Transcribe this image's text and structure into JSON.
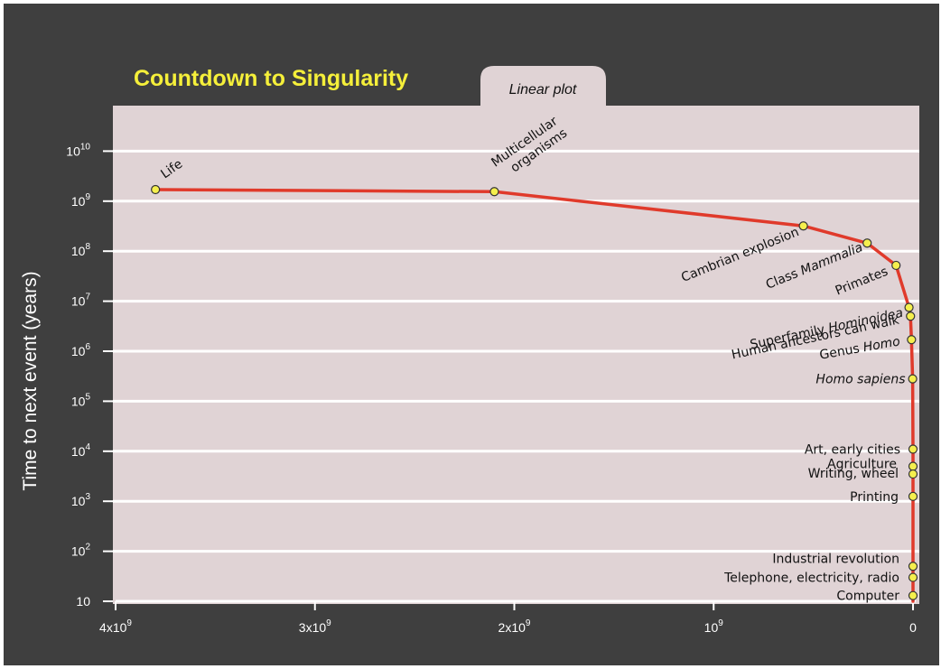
{
  "chart_data": {
    "type": "line",
    "title": "Countdown to Singularity",
    "tab_label": "Linear plot",
    "ylabel": "Time to next event (years)",
    "xlabel": "",
    "x_reversed": true,
    "xlim": [
      4000000000,
      0
    ],
    "yscale": "log",
    "ylim": [
      10,
      31622776601
    ],
    "grid": true,
    "colors": {
      "frame": "#3f3f3f",
      "plot_bg": "#e0d3d5",
      "grid": "#ffffff",
      "line": "#e03a2b",
      "marker_fill": "#f5ef4e",
      "marker_edge": "#333333",
      "title": "#f5ef3a"
    },
    "x_ticks": [
      {
        "value": 4000000000,
        "base": "4x10",
        "exp": "9"
      },
      {
        "value": 3000000000,
        "base": "3x10",
        "exp": "9"
      },
      {
        "value": 2000000000,
        "base": "2x10",
        "exp": "9"
      },
      {
        "value": 1000000000,
        "base": "10",
        "exp": "9"
      },
      {
        "value": 0,
        "base": "0",
        "exp": ""
      }
    ],
    "y_ticks": [
      {
        "value": 10,
        "base": "10",
        "exp": ""
      },
      {
        "value": 100,
        "base": "10",
        "exp": "2"
      },
      {
        "value": 1000,
        "base": "10",
        "exp": "3"
      },
      {
        "value": 10000,
        "base": "10",
        "exp": "4"
      },
      {
        "value": 100000,
        "base": "10",
        "exp": "5"
      },
      {
        "value": 1000000,
        "base": "10",
        "exp": "6"
      },
      {
        "value": 10000000,
        "base": "10",
        "exp": "7"
      },
      {
        "value": 100000000,
        "base": "10",
        "exp": "8"
      },
      {
        "value": 1000000000,
        "base": "10",
        "exp": "9"
      },
      {
        "value": 10000000000,
        "base": "10",
        "exp": "10"
      }
    ],
    "series": [
      {
        "points": [
          {
            "x": 3800000000,
            "y": 1700000000
          },
          {
            "x": 2100000000,
            "y": 1550000000
          },
          {
            "x": 550000000,
            "y": 320000000
          },
          {
            "x": 230000000,
            "y": 145000000
          },
          {
            "x": 85000000,
            "y": 52000000
          },
          {
            "x": 20000000,
            "y": 7500000
          },
          {
            "x": 12500000,
            "y": 5000000
          },
          {
            "x": 7500000,
            "y": 1700000
          },
          {
            "x": 1800000,
            "y": 280000
          },
          {
            "x": 12000,
            "y": 11000
          },
          {
            "x": 10000,
            "y": 5000
          },
          {
            "x": 5000,
            "y": 3500
          },
          {
            "x": 1400,
            "y": 1250
          },
          {
            "x": 220,
            "y": 50
          },
          {
            "x": 130,
            "y": 30
          },
          {
            "x": 60,
            "y": 13
          }
        ]
      }
    ],
    "annotations": [
      {
        "point": 0,
        "text": "Life",
        "italic_part": ""
      },
      {
        "point": 1,
        "lines": [
          "Multicellular",
          "organisms"
        ]
      },
      {
        "point": 2,
        "text": "Cambrian explosion",
        "italic_part": ""
      },
      {
        "point": 3,
        "text": "Class ",
        "italic_part": "Mammalia"
      },
      {
        "point": 4,
        "text": "Primates",
        "italic_part": ""
      },
      {
        "point": 5,
        "text": "Superfamily ",
        "italic_part": "Hominoidea"
      },
      {
        "point": 6,
        "text": "Human ancestors can walk",
        "italic_part": ""
      },
      {
        "point": 7,
        "text": "Genus ",
        "italic_part": "Homo"
      },
      {
        "point": 8,
        "text": "",
        "italic_part": "Homo sapiens"
      },
      {
        "point": 9,
        "text": "Art, early cities",
        "italic_part": ""
      },
      {
        "point": 10,
        "text": "Agriculture",
        "italic_part": ""
      },
      {
        "point": 11,
        "text": "Writing, wheel",
        "italic_part": ""
      },
      {
        "point": 12,
        "text": "Printing",
        "italic_part": ""
      },
      {
        "point": 13,
        "text": "Industrial revolution",
        "italic_part": ""
      },
      {
        "point": 14,
        "text": "Telephone, electricity, radio",
        "italic_part": ""
      },
      {
        "point": 15,
        "text": "Computer",
        "italic_part": ""
      }
    ]
  }
}
